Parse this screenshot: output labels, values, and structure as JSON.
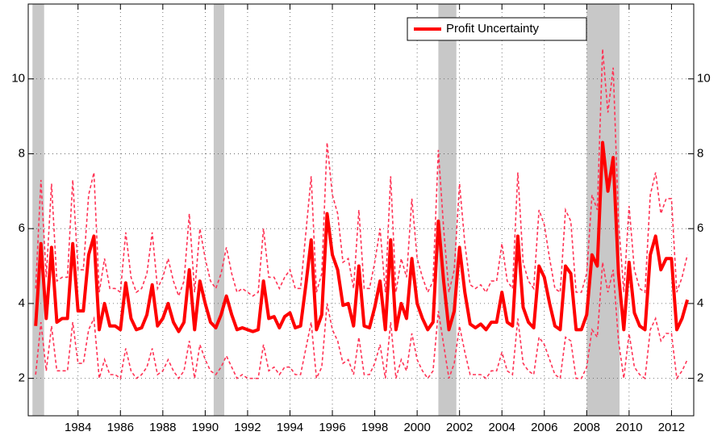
{
  "chart_data": {
    "type": "line",
    "x": [
      1982,
      1982.25,
      1982.5,
      1982.75,
      1983,
      1983.25,
      1983.5,
      1983.75,
      1984,
      1984.25,
      1984.5,
      1984.75,
      1985,
      1985.25,
      1985.5,
      1985.75,
      1986,
      1986.25,
      1986.5,
      1986.75,
      1987,
      1987.25,
      1987.5,
      1987.75,
      1988,
      1988.25,
      1988.5,
      1988.75,
      1989,
      1989.25,
      1989.5,
      1989.75,
      1990,
      1990.25,
      1990.5,
      1990.75,
      1991,
      1991.25,
      1991.5,
      1991.75,
      1992,
      1992.25,
      1992.5,
      1992.75,
      1993,
      1993.25,
      1993.5,
      1993.75,
      1994,
      1994.25,
      1994.5,
      1994.75,
      1995,
      1995.25,
      1995.5,
      1995.75,
      1996,
      1996.25,
      1996.5,
      1996.75,
      1997,
      1997.25,
      1997.5,
      1997.75,
      1998,
      1998.25,
      1998.5,
      1998.75,
      1999,
      1999.25,
      1999.5,
      1999.75,
      2000,
      2000.25,
      2000.5,
      2000.75,
      2001,
      2001.25,
      2001.5,
      2001.75,
      2002,
      2002.25,
      2002.5,
      2002.75,
      2003,
      2003.25,
      2003.5,
      2003.75,
      2004,
      2004.25,
      2004.5,
      2004.75,
      2005,
      2005.25,
      2005.5,
      2005.75,
      2006,
      2006.25,
      2006.5,
      2006.75,
      2007,
      2007.25,
      2007.5,
      2007.75,
      2008,
      2008.25,
      2008.5,
      2008.75,
      2009,
      2009.25,
      2009.5,
      2009.75,
      2010,
      2010.25,
      2010.5,
      2010.75,
      2011,
      2011.25,
      2011.5,
      2011.75,
      2012,
      2012.25,
      2012.5,
      2012.75
    ],
    "series": [
      {
        "name": "Profit Uncertainty",
        "color": "#ff0000",
        "values": [
          3.4,
          5.6,
          3.6,
          5.5,
          3.5,
          3.6,
          3.6,
          5.6,
          3.8,
          3.8,
          5.3,
          5.8,
          3.3,
          4.0,
          3.4,
          3.4,
          3.3,
          4.55,
          3.6,
          3.3,
          3.35,
          3.7,
          4.5,
          3.4,
          3.6,
          4.0,
          3.5,
          3.25,
          3.5,
          4.9,
          3.3,
          4.6,
          4.0,
          3.5,
          3.35,
          3.7,
          4.2,
          3.7,
          3.3,
          3.35,
          3.3,
          3.25,
          3.3,
          4.6,
          3.6,
          3.65,
          3.35,
          3.65,
          3.75,
          3.35,
          3.4,
          4.5,
          5.7,
          3.3,
          3.7,
          6.4,
          5.3,
          4.9,
          3.95,
          4.0,
          3.4,
          5.0,
          3.4,
          3.35,
          3.9,
          4.6,
          3.3,
          5.7,
          3.3,
          4.0,
          3.6,
          5.2,
          4.0,
          3.6,
          3.3,
          3.5,
          6.2,
          4.6,
          3.3,
          3.8,
          5.5,
          4.3,
          3.45,
          3.35,
          3.45,
          3.3,
          3.5,
          3.5,
          4.3,
          3.5,
          3.4,
          5.8,
          3.9,
          3.5,
          3.35,
          5.0,
          4.7,
          4.0,
          3.4,
          3.3,
          5.0,
          4.8,
          3.3,
          3.3,
          3.7,
          5.3,
          5.0,
          8.3,
          7.0,
          7.9,
          4.8,
          3.3,
          5.1,
          3.75,
          3.4,
          3.3,
          5.3,
          5.8,
          4.9,
          5.2,
          5.2,
          3.3,
          3.6,
          4.1
        ]
      }
    ],
    "bands": {
      "color": "#ff3355",
      "upper": [
        4.4,
        7.3,
        4.7,
        7.2,
        4.6,
        4.7,
        4.7,
        7.3,
        4.9,
        4.9,
        6.9,
        7.5,
        4.3,
        5.2,
        4.4,
        4.4,
        4.3,
        5.9,
        4.7,
        4.3,
        4.4,
        4.8,
        5.9,
        4.4,
        4.7,
        5.2,
        4.6,
        4.2,
        4.6,
        6.4,
        4.3,
        6.0,
        5.2,
        4.6,
        4.4,
        4.8,
        5.5,
        4.8,
        4.3,
        4.4,
        4.3,
        4.2,
        4.3,
        6.0,
        4.7,
        4.7,
        4.4,
        4.7,
        4.9,
        4.4,
        4.4,
        5.9,
        7.4,
        4.3,
        4.8,
        8.3,
        6.9,
        6.4,
        5.1,
        5.2,
        4.4,
        6.5,
        4.4,
        4.4,
        5.1,
        6.0,
        4.3,
        7.4,
        4.3,
        5.2,
        4.7,
        6.8,
        5.2,
        4.7,
        4.3,
        4.6,
        8.1,
        6.0,
        4.3,
        4.9,
        7.2,
        5.6,
        4.5,
        4.4,
        4.5,
        4.3,
        4.6,
        4.6,
        5.6,
        4.6,
        4.4,
        7.5,
        5.1,
        4.6,
        4.4,
        6.5,
        6.1,
        5.2,
        4.4,
        4.3,
        6.5,
        6.2,
        4.3,
        4.3,
        4.8,
        6.9,
        6.5,
        10.8,
        9.1,
        10.3,
        6.2,
        4.3,
        6.6,
        4.9,
        4.4,
        4.3,
        6.9,
        7.5,
        6.4,
        6.8,
        6.8,
        4.3,
        4.7,
        5.3
      ],
      "lower": [
        2.1,
        3.5,
        2.2,
        3.4,
        2.2,
        2.2,
        2.2,
        3.5,
        2.4,
        2.4,
        3.3,
        3.6,
        2.0,
        2.5,
        2.1,
        2.1,
        2.0,
        2.8,
        2.2,
        2.0,
        2.1,
        2.3,
        2.8,
        2.1,
        2.2,
        2.5,
        2.2,
        2.0,
        2.2,
        3.0,
        2.0,
        2.9,
        2.5,
        2.2,
        2.1,
        2.3,
        2.6,
        2.3,
        2.0,
        2.1,
        2.0,
        2.0,
        2.0,
        2.9,
        2.2,
        2.3,
        2.1,
        2.3,
        2.3,
        2.1,
        2.1,
        2.8,
        3.5,
        2.0,
        2.3,
        4.0,
        3.3,
        3.0,
        2.4,
        2.5,
        2.1,
        3.1,
        2.1,
        2.1,
        2.4,
        2.9,
        2.0,
        3.5,
        2.0,
        2.5,
        2.2,
        3.2,
        2.5,
        2.2,
        2.0,
        2.2,
        3.8,
        2.9,
        2.0,
        2.4,
        3.4,
        2.7,
        2.1,
        2.1,
        2.1,
        2.0,
        2.2,
        2.2,
        2.7,
        2.2,
        2.1,
        3.6,
        2.4,
        2.2,
        2.1,
        3.1,
        2.9,
        2.5,
        2.1,
        2.0,
        3.1,
        3.0,
        2.0,
        2.0,
        2.3,
        3.3,
        3.1,
        5.1,
        4.3,
        4.9,
        3.0,
        2.0,
        3.2,
        2.3,
        2.1,
        2.0,
        3.3,
        3.6,
        3.0,
        3.2,
        3.2,
        2.0,
        2.2,
        2.5
      ]
    },
    "recessions": [
      [
        1981.85,
        1982.4
      ],
      [
        1990.4,
        1990.9
      ],
      [
        2001.0,
        2001.85
      ],
      [
        2008.0,
        2009.55
      ]
    ],
    "recession_color": "#c8c8c8",
    "xlim": [
      1981.65,
      2013.05
    ],
    "xticks": [
      1984,
      1986,
      1988,
      1990,
      1992,
      1994,
      1996,
      1998,
      2000,
      2002,
      2004,
      2006,
      2008,
      2010,
      2012
    ],
    "ylim": [
      1,
      12
    ],
    "yticks": [
      2,
      4,
      6,
      8,
      10
    ],
    "grid": true,
    "legend": "upper right"
  }
}
